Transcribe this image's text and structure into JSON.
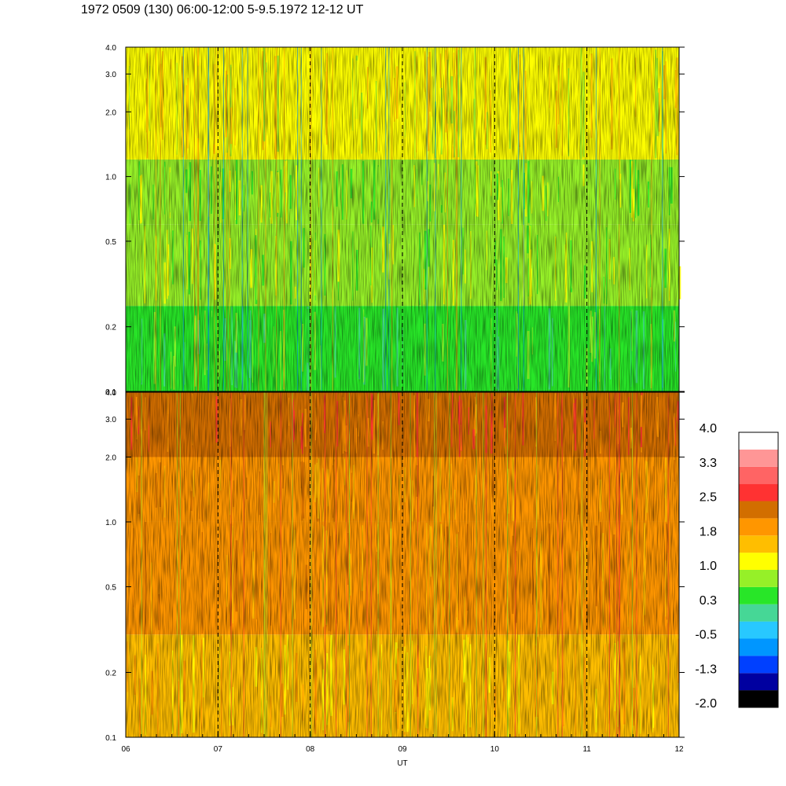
{
  "title": "1972 0509 (130) 06:00-12:00 5-9.5.1972  12-12 UT",
  "chart_data": {
    "type": "heatmap",
    "xlabel": "UT",
    "x_ticks": [
      "06",
      "07",
      "08",
      "09",
      "10",
      "11",
      "12"
    ],
    "x_range": [
      6,
      12
    ],
    "x_dashed_lines": [
      7,
      8,
      9,
      10,
      11
    ],
    "panels": [
      {
        "id": "top",
        "y_scale": "log",
        "y_range": [
          0.1,
          4.0
        ],
        "y_ticks": [
          {
            "value": 0.1,
            "label": "0.1"
          },
          {
            "value": 0.2,
            "label": "0.2"
          },
          {
            "value": 0.5,
            "label": "0.5"
          },
          {
            "value": 1.0,
            "label": "1.0"
          },
          {
            "value": 2.0,
            "label": "2.0"
          },
          {
            "value": 3.0,
            "label": "3.0"
          },
          {
            "value": 4.0,
            "label": "4.0"
          }
        ],
        "dominant_levels_by_y": [
          {
            "y_from": 0.1,
            "y_to": 0.25,
            "color_index": 6
          },
          {
            "y_from": 0.25,
            "y_to": 0.6,
            "color_index": 7
          },
          {
            "y_from": 0.6,
            "y_to": 1.2,
            "color_index": 7
          },
          {
            "y_from": 1.2,
            "y_to": 4.0,
            "color_index": 8
          }
        ]
      },
      {
        "id": "bottom",
        "y_scale": "log",
        "y_range": [
          0.1,
          4.0
        ],
        "y_ticks": [
          {
            "value": 0.1,
            "label": "0.1"
          },
          {
            "value": 0.2,
            "label": "0.2"
          },
          {
            "value": 0.5,
            "label": "0.5"
          },
          {
            "value": 1.0,
            "label": "1.0"
          },
          {
            "value": 2.0,
            "label": "2.0"
          },
          {
            "value": 3.0,
            "label": "3.0"
          },
          {
            "value": 4.0,
            "label": "4.0"
          }
        ],
        "dominant_levels_by_y": [
          {
            "y_from": 0.1,
            "y_to": 0.3,
            "color_index": 9
          },
          {
            "y_from": 0.3,
            "y_to": 1.0,
            "color_index": 10
          },
          {
            "y_from": 1.0,
            "y_to": 2.0,
            "color_index": 10
          },
          {
            "y_from": 2.0,
            "y_to": 4.0,
            "color_index": 11
          }
        ]
      }
    ],
    "colorbar": {
      "labels": [
        "4.0",
        "3.3",
        "2.5",
        "1.8",
        "1.0",
        "0.3",
        "-0.5",
        "-1.3",
        "-2.0"
      ],
      "colors_bottom_to_top": [
        "#000000",
        "#0000a0",
        "#0040ff",
        "#0096ff",
        "#28c8ff",
        "#46d796",
        "#28e628",
        "#96f028",
        "#ffff00",
        "#ffbe00",
        "#ff9600",
        "#d26e00",
        "#ff3232",
        "#ff6464",
        "#ff9696",
        "#ffffff"
      ]
    }
  }
}
